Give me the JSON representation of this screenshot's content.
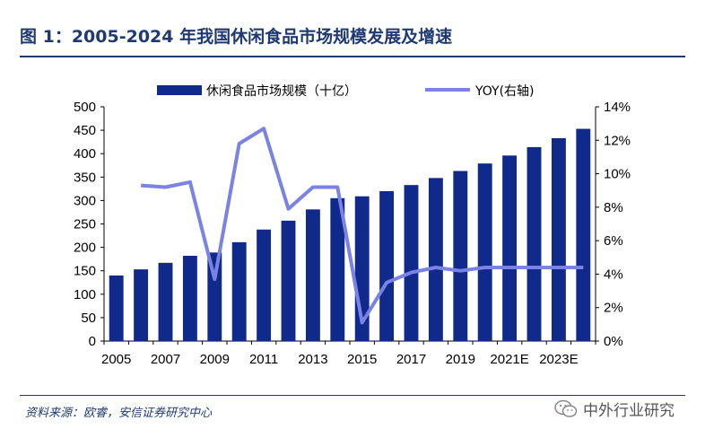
{
  "title": "图 1：2005-2024 年我国休闲食品市场规模发展及增速",
  "source": "资料来源：欧睿，安信证券研究中心",
  "watermark": "中外行业研究",
  "colors": {
    "bar": "#0f2a8a",
    "line": "#7a82e6",
    "title": "#1f3a73"
  },
  "chart_data": {
    "type": "bar",
    "title": "图 1：2005-2024 年我国休闲食品市场规模发展及增速",
    "legend_position": "top",
    "grid": false,
    "categories": [
      "2005",
      "2006",
      "2007",
      "2008",
      "2009",
      "2010",
      "2011",
      "2012",
      "2013",
      "2014",
      "2015",
      "2016",
      "2017",
      "2018",
      "2019",
      "2020",
      "2021E",
      "2022E",
      "2023E",
      "2024E"
    ],
    "x_tick_labels": [
      "2005",
      "",
      "2007",
      "",
      "2009",
      "",
      "2011",
      "",
      "2013",
      "",
      "2015",
      "",
      "2017",
      "",
      "2019",
      "",
      "2021E",
      "",
      "2023E",
      ""
    ],
    "y_left": {
      "min": 0,
      "max": 500,
      "step": 50,
      "ticks": [
        "0",
        "50",
        "100",
        "150",
        "200",
        "250",
        "300",
        "350",
        "400",
        "450",
        "500"
      ]
    },
    "y_right": {
      "min": 0,
      "max": 14,
      "step": 2,
      "ticks": [
        "0%",
        "2%",
        "4%",
        "6%",
        "8%",
        "10%",
        "12%",
        "14%"
      ]
    },
    "series": [
      {
        "name": "休闲食品市场规模（十亿）",
        "type": "bar",
        "axis": "left",
        "values": [
          140,
          153,
          167,
          182,
          189,
          211,
          238,
          257,
          281,
          305,
          309,
          320,
          333,
          348,
          363,
          379,
          396,
          414,
          433,
          453
        ]
      },
      {
        "name": "YOY(右轴)",
        "type": "line",
        "axis": "right",
        "values": [
          null,
          9.3,
          9.2,
          9.5,
          3.7,
          11.8,
          12.7,
          7.9,
          9.2,
          9.2,
          1.1,
          3.5,
          4.1,
          4.4,
          4.2,
          4.4,
          4.4,
          4.4,
          4.4,
          4.4
        ]
      }
    ]
  }
}
